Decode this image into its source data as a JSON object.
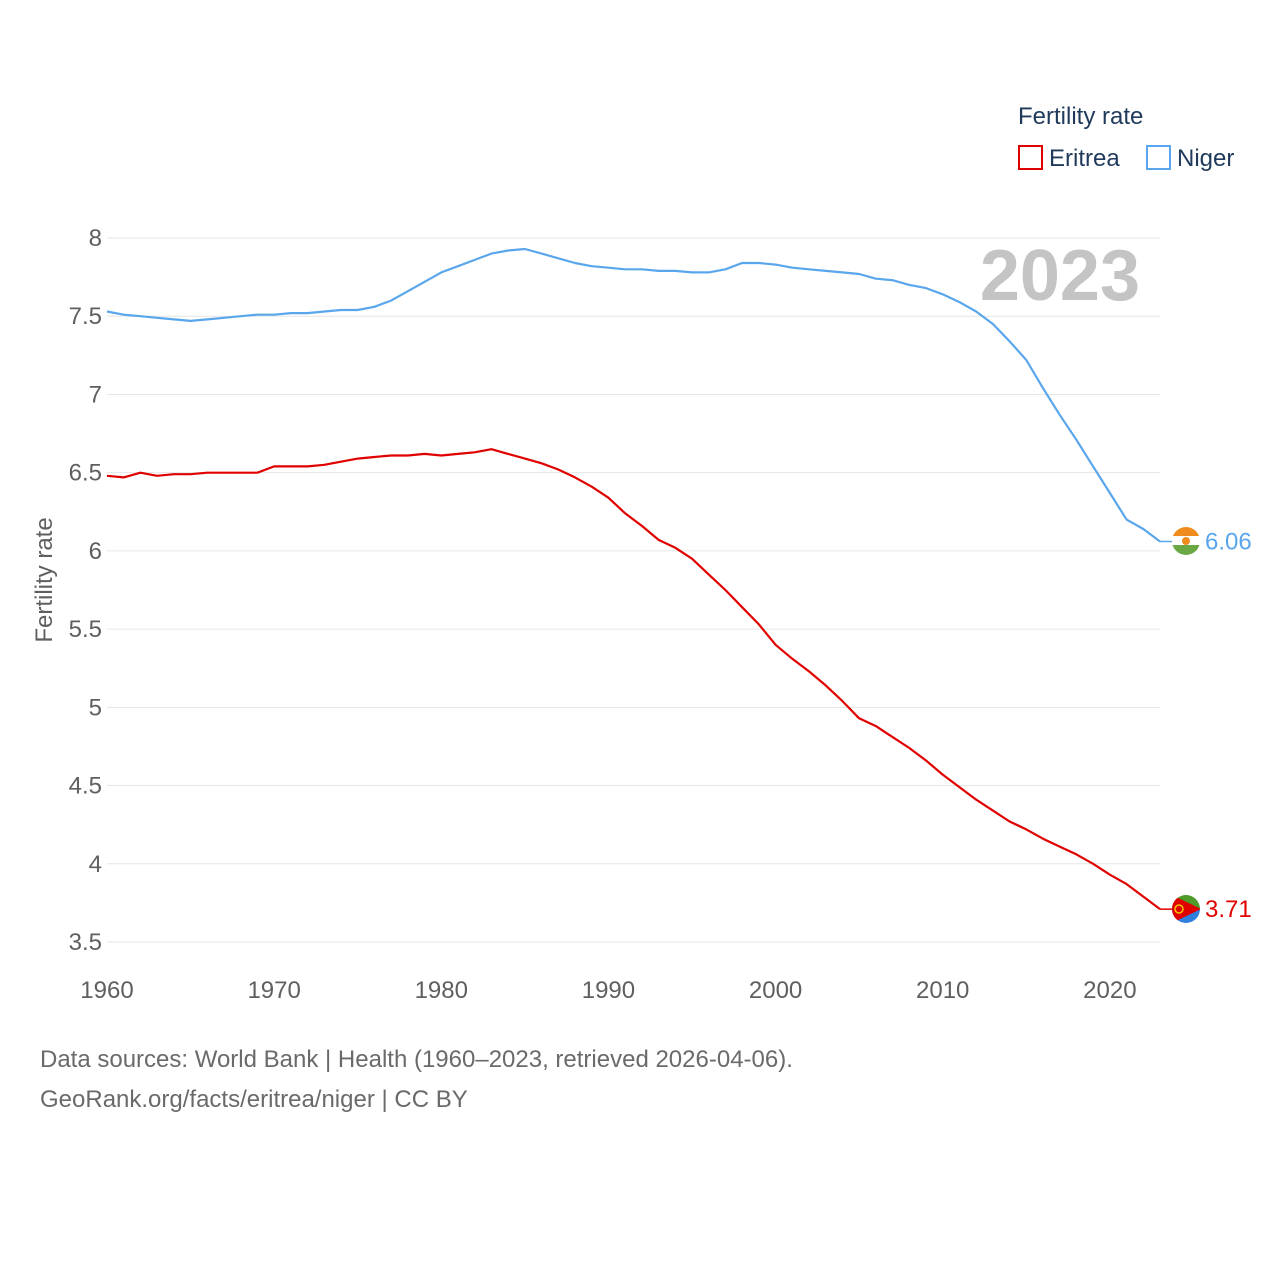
{
  "chart_data": {
    "type": "line",
    "ylabel": "Fertility rate",
    "xlabel": "",
    "year_label": "2023",
    "legend": {
      "title": "Fertility rate",
      "position": "top-right"
    },
    "xlim": [
      1960,
      2023
    ],
    "ylim": [
      3.5,
      8
    ],
    "x_ticks": [
      1960,
      1970,
      1980,
      1990,
      2000,
      2010,
      2020
    ],
    "y_ticks": [
      3.5,
      4,
      4.5,
      5,
      5.5,
      6,
      6.5,
      7,
      7.5,
      8
    ],
    "x": [
      1960,
      1961,
      1962,
      1963,
      1964,
      1965,
      1966,
      1967,
      1968,
      1969,
      1970,
      1971,
      1972,
      1973,
      1974,
      1975,
      1976,
      1977,
      1978,
      1979,
      1980,
      1981,
      1982,
      1983,
      1984,
      1985,
      1986,
      1987,
      1988,
      1989,
      1990,
      1991,
      1992,
      1993,
      1994,
      1995,
      1996,
      1997,
      1998,
      1999,
      2000,
      2001,
      2002,
      2003,
      2004,
      2005,
      2006,
      2007,
      2008,
      2009,
      2010,
      2011,
      2012,
      2013,
      2014,
      2015,
      2016,
      2017,
      2018,
      2019,
      2020,
      2021,
      2022,
      2023
    ],
    "series": [
      {
        "name": "Eritrea",
        "color": "#e00000",
        "end_label": "3.71",
        "flag_icon": "eritrea-flag-icon",
        "values": [
          6.48,
          6.47,
          6.5,
          6.48,
          6.49,
          6.49,
          6.5,
          6.5,
          6.5,
          6.5,
          6.54,
          6.54,
          6.54,
          6.55,
          6.57,
          6.59,
          6.6,
          6.61,
          6.61,
          6.62,
          6.61,
          6.62,
          6.63,
          6.65,
          6.62,
          6.59,
          6.56,
          6.52,
          6.47,
          6.41,
          6.34,
          6.24,
          6.16,
          6.07,
          6.02,
          5.95,
          5.85,
          5.75,
          5.64,
          5.53,
          5.4,
          5.31,
          5.23,
          5.14,
          5.04,
          4.93,
          4.88,
          4.81,
          4.74,
          4.66,
          4.57,
          4.49,
          4.41,
          4.34,
          4.27,
          4.22,
          4.16,
          4.11,
          4.06,
          4.0,
          3.93,
          3.87,
          3.79,
          3.71
        ]
      },
      {
        "name": "Niger",
        "color": "#5aa6ec",
        "end_label": "6.06",
        "flag_icon": "niger-flag-icon",
        "values": [
          7.53,
          7.51,
          7.5,
          7.49,
          7.48,
          7.47,
          7.48,
          7.49,
          7.5,
          7.51,
          7.51,
          7.52,
          7.52,
          7.53,
          7.54,
          7.54,
          7.56,
          7.6,
          7.66,
          7.72,
          7.78,
          7.82,
          7.86,
          7.9,
          7.92,
          7.93,
          7.9,
          7.87,
          7.84,
          7.82,
          7.81,
          7.8,
          7.8,
          7.79,
          7.79,
          7.78,
          7.78,
          7.8,
          7.84,
          7.84,
          7.83,
          7.81,
          7.8,
          7.79,
          7.78,
          7.77,
          7.74,
          7.73,
          7.7,
          7.68,
          7.64,
          7.59,
          7.53,
          7.45,
          7.34,
          7.22,
          7.04,
          6.87,
          6.71,
          6.54,
          6.37,
          6.2,
          6.14,
          6.06
        ]
      }
    ]
  },
  "footer": {
    "sources": "Data sources: World Bank | Health (1960–2023, retrieved 2026-04-06).",
    "attribution": "GeoRank.org/facts/eritrea/niger | CC BY"
  }
}
